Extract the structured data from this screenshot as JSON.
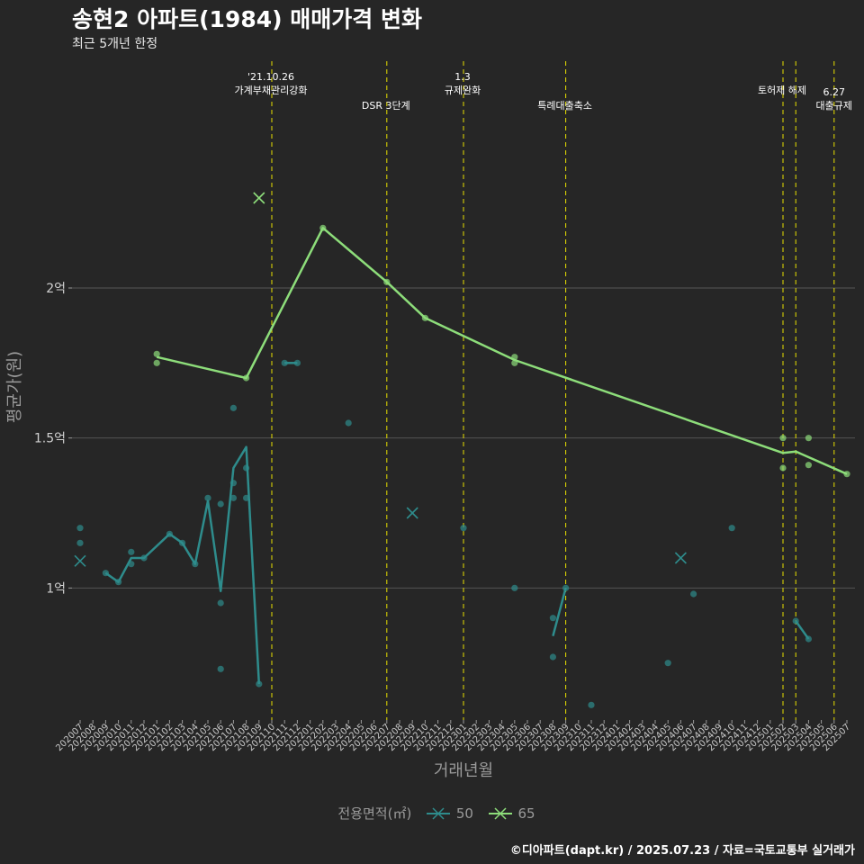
{
  "title": "송현2 아파트(1984) 매매가격 변화",
  "subtitle": "최근 5개년 한정",
  "caption": "©디아파트(dapt.kr) / 2025.07.23 / 자료=국토교통부 실거래가",
  "legend": {
    "title": "전용면적(㎡)",
    "items": [
      "50",
      "65"
    ]
  },
  "colors": {
    "background": "#262626",
    "grid": "#555555",
    "series_50": "#2e8c8c",
    "series_65": "#8ddd7a",
    "event_line": "#e8e000",
    "axis_text": "#9a9a9a"
  },
  "chart_data": {
    "type": "line",
    "title": "송현2 아파트(1984) 매매가격 변화",
    "subtitle": "최근 5개년 한정",
    "xlabel": "거래년월",
    "ylabel": "평균가(원)",
    "ylim": [
      0.56,
      2.78
    ],
    "yticks": [
      {
        "value": 1,
        "label": "1억"
      },
      {
        "value": 1.5,
        "label": "1.5억"
      },
      {
        "value": 2,
        "label": "2억"
      }
    ],
    "grid": true,
    "legend_position": "bottom",
    "x_categories": [
      "202007",
      "202008",
      "202009",
      "202010",
      "202011",
      "202012",
      "202101",
      "202102",
      "202103",
      "202104",
      "202105",
      "202106",
      "202107",
      "202108",
      "202109",
      "202110",
      "202111",
      "202112",
      "202201",
      "202202",
      "202203",
      "202204",
      "202205",
      "202206",
      "202207",
      "202208",
      "202209",
      "202210",
      "202211",
      "202212",
      "202301",
      "202302",
      "202303",
      "202304",
      "202305",
      "202306",
      "202307",
      "202308",
      "202309",
      "202310",
      "202311",
      "202312",
      "202401",
      "202402",
      "202403",
      "202404",
      "202405",
      "202406",
      "202407",
      "202408",
      "202409",
      "202410",
      "202411",
      "202412",
      "202501",
      "202502",
      "202503",
      "202504",
      "202505",
      "202506",
      "202507"
    ],
    "events": [
      {
        "x": "202110",
        "label": "'21.10.26\n가계부채관리강화",
        "label_tier": 1
      },
      {
        "x": "202207",
        "label": "DSR 3단계",
        "label_tier": 2
      },
      {
        "x": "202301",
        "label": "1.3\n규제완화",
        "label_tier": 1
      },
      {
        "x": "202309",
        "label": "특례대출축소",
        "label_tier": 2
      },
      {
        "x": "202502",
        "label": "토허제 해제",
        "label_tier": 1
      },
      {
        "x": "202503",
        "label": "",
        "label_tier": 1
      },
      {
        "x": "202506",
        "label": "6.27\n대출규제",
        "label_tier": 2
      }
    ],
    "series": [
      {
        "name": "50",
        "color": "#2e8c8c",
        "line": [
          [
            "202009",
            1.05
          ],
          [
            "202010",
            1.02
          ],
          [
            "202011",
            1.1
          ],
          [
            "202012",
            1.1
          ],
          [
            "202102",
            1.18
          ],
          [
            "202103",
            1.15
          ],
          [
            "202104",
            1.08
          ],
          [
            "202105",
            1.29
          ],
          [
            "202106",
            0.99
          ],
          [
            "202107",
            1.4
          ],
          [
            "202108",
            1.47
          ],
          [
            "202109",
            0.68
          ]
        ],
        "line2": [
          [
            "202308",
            0.84
          ],
          [
            "202309",
            1.0
          ]
        ],
        "line3": [
          [
            "202503",
            0.89
          ],
          [
            "202504",
            0.83
          ]
        ],
        "line4": [
          [
            "202111",
            1.75
          ],
          [
            "202112",
            1.75
          ]
        ],
        "points": [
          [
            "202007",
            1.2
          ],
          [
            "202007",
            1.15
          ],
          [
            "202009",
            1.05
          ],
          [
            "202010",
            1.02
          ],
          [
            "202011",
            1.12
          ],
          [
            "202011",
            1.08
          ],
          [
            "202012",
            1.1
          ],
          [
            "202102",
            1.18
          ],
          [
            "202103",
            1.15
          ],
          [
            "202104",
            1.08
          ],
          [
            "202105",
            1.3
          ],
          [
            "202106",
            1.28
          ],
          [
            "202106",
            0.95
          ],
          [
            "202106",
            0.73
          ],
          [
            "202107",
            1.6
          ],
          [
            "202107",
            1.35
          ],
          [
            "202107",
            1.3
          ],
          [
            "202108",
            1.4
          ],
          [
            "202108",
            1.3
          ],
          [
            "202109",
            0.68
          ],
          [
            "202111",
            1.75
          ],
          [
            "202112",
            1.75
          ],
          [
            "202204",
            1.55
          ],
          [
            "202301",
            1.2
          ],
          [
            "202305",
            1.0
          ],
          [
            "202308",
            0.9
          ],
          [
            "202308",
            0.77
          ],
          [
            "202309",
            1.0
          ],
          [
            "202311",
            0.61
          ],
          [
            "202405",
            0.75
          ],
          [
            "202407",
            0.98
          ],
          [
            "202410",
            1.2
          ],
          [
            "202503",
            0.89
          ],
          [
            "202504",
            0.83
          ]
        ],
        "crosses": [
          [
            "202007",
            1.09
          ],
          [
            "202209",
            1.25
          ],
          [
            "202406",
            1.1
          ]
        ]
      },
      {
        "name": "65",
        "color": "#8ddd7a",
        "line": [
          [
            "202101",
            1.77
          ],
          [
            "202108",
            1.7
          ],
          [
            "202202",
            2.2
          ],
          [
            "202207",
            2.02
          ],
          [
            "202210",
            1.9
          ],
          [
            "202305",
            1.76
          ],
          [
            "202502",
            1.45
          ],
          [
            "202503",
            1.455
          ],
          [
            "202507",
            1.38
          ]
        ],
        "points": [
          [
            "202101",
            1.78
          ],
          [
            "202101",
            1.75
          ],
          [
            "202108",
            1.7
          ],
          [
            "202202",
            2.2
          ],
          [
            "202207",
            2.02
          ],
          [
            "202210",
            1.9
          ],
          [
            "202305",
            1.77
          ],
          [
            "202305",
            1.75
          ],
          [
            "202502",
            1.5
          ],
          [
            "202502",
            1.4
          ],
          [
            "202504",
            1.5
          ],
          [
            "202504",
            1.41
          ],
          [
            "202507",
            1.38
          ]
        ],
        "crosses": [
          [
            "202109",
            2.3
          ]
        ]
      }
    ]
  }
}
